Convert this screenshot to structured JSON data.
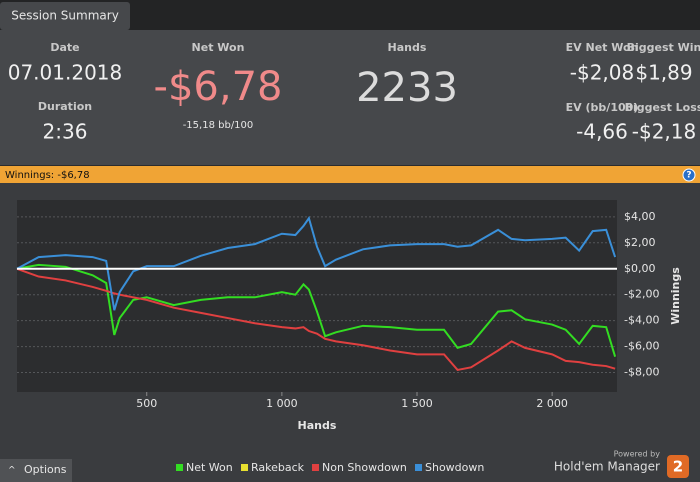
{
  "tab": "Session Summary",
  "summary": {
    "date_label": "Date",
    "date": "07.01.2018",
    "duration_label": "Duration",
    "duration": "2:36",
    "net_won_label": "Net Won",
    "net_won": "-$6,78",
    "bb_per_100": "-15,18 bb/100",
    "hands_label": "Hands",
    "hands": "2233",
    "ev_net_won_label": "EV Net Won",
    "ev_net_won": "-$2,08",
    "biggest_win_label": "Biggest Win",
    "biggest_win": "$1,89",
    "ev_bb_label": "EV (bb/100)",
    "ev_bb": "-4,66",
    "biggest_loss_label": "Biggest Loss",
    "biggest_loss": "-$2,18"
  },
  "winnings_bar": "Winnings: -$6,78",
  "help": "?",
  "chart_data": {
    "type": "line",
    "xlabel": "Hands",
    "ylabel": "Winnings",
    "x": [
      20,
      100,
      200,
      300,
      350,
      380,
      400,
      450,
      500,
      600,
      700,
      800,
      900,
      1000,
      1050,
      1080,
      1100,
      1130,
      1160,
      1200,
      1300,
      1400,
      1500,
      1600,
      1650,
      1700,
      1800,
      1850,
      1900,
      2000,
      2050,
      2100,
      2150,
      2200,
      2233
    ],
    "series": [
      {
        "name": "Net Won",
        "color": "#33dd22",
        "values": [
          0,
          0.3,
          0.15,
          -0.5,
          -1.1,
          -5.1,
          -3.8,
          -2.4,
          -2.2,
          -2.8,
          -2.4,
          -2.2,
          -2.2,
          -1.8,
          -2.0,
          -1.2,
          -1.6,
          -3.3,
          -5.2,
          -4.9,
          -4.4,
          -4.5,
          -4.7,
          -4.7,
          -6.1,
          -5.8,
          -3.3,
          -3.2,
          -3.9,
          -4.3,
          -4.7,
          -5.8,
          -4.4,
          -4.5,
          -6.78
        ]
      },
      {
        "name": "Rakeback",
        "color": "#e8e030",
        "values": [
          null,
          null,
          null,
          null,
          null,
          null,
          null,
          null,
          null,
          null,
          null,
          null,
          null,
          null,
          null,
          null,
          null,
          null,
          null,
          null,
          null,
          null,
          null,
          null,
          null,
          null,
          null,
          null,
          null,
          null,
          null,
          null,
          null,
          null,
          null
        ]
      },
      {
        "name": "Non Showdown",
        "color": "#e04040",
        "values": [
          0,
          -0.6,
          -0.9,
          -1.4,
          -1.7,
          -1.9,
          -2.0,
          -2.2,
          -2.4,
          -3.0,
          -3.4,
          -3.8,
          -4.2,
          -4.5,
          -4.6,
          -4.5,
          -4.8,
          -5.0,
          -5.4,
          -5.6,
          -5.9,
          -6.3,
          -6.6,
          -6.6,
          -7.8,
          -7.6,
          -6.3,
          -5.6,
          -6.1,
          -6.6,
          -7.1,
          -7.2,
          -7.4,
          -7.5,
          -7.7
        ]
      },
      {
        "name": "Showdown",
        "color": "#3a8fd8",
        "values": [
          0,
          0.9,
          1.05,
          0.9,
          0.6,
          -3.2,
          -1.8,
          -0.2,
          0.2,
          0.2,
          1.0,
          1.6,
          1.9,
          2.7,
          2.6,
          3.3,
          3.9,
          1.7,
          0.2,
          0.7,
          1.5,
          1.8,
          1.9,
          1.9,
          1.7,
          1.8,
          3.0,
          2.3,
          2.2,
          2.3,
          2.4,
          1.4,
          2.9,
          3.0,
          0.9
        ]
      }
    ],
    "xlim": [
      20,
      2240
    ],
    "ylim": [
      -9.5,
      5.3
    ],
    "xticks": [
      {
        "value": 500,
        "label": "500"
      },
      {
        "value": 1000,
        "label": "1 000"
      },
      {
        "value": 1500,
        "label": "1 500"
      },
      {
        "value": 2000,
        "label": "2 000"
      }
    ],
    "yticks": [
      {
        "value": 4,
        "label": "$4,00"
      },
      {
        "value": 2,
        "label": "$2,00"
      },
      {
        "value": 0,
        "label": "$0,00"
      },
      {
        "value": -2,
        "label": "-$2,00"
      },
      {
        "value": -4,
        "label": "-$4,00"
      },
      {
        "value": -6,
        "label": "-$6,00"
      },
      {
        "value": -8,
        "label": "-$8,00"
      }
    ],
    "grid": true,
    "zero_line": true,
    "legend": "bottom"
  },
  "options": "Options",
  "branding": {
    "powered_by": "Powered by",
    "product": "Hold'em Manager",
    "logo": "2"
  }
}
